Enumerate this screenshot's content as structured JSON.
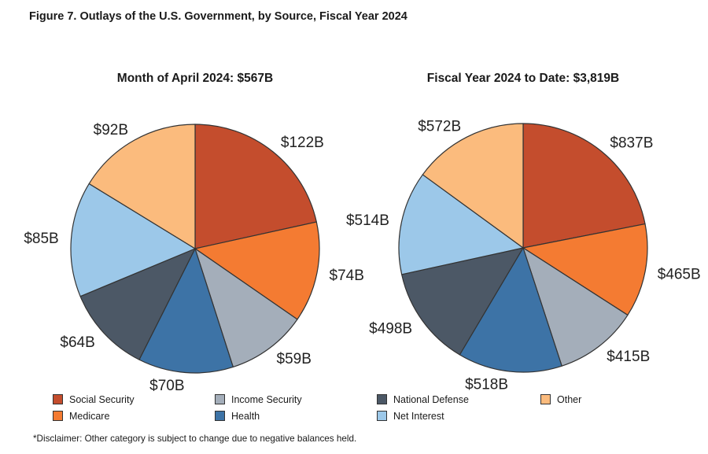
{
  "figure": {
    "title": "Figure 7. Outlays of the U.S. Government, by Source, Fiscal Year 2024",
    "disclaimer": "*Disclaimer: Other category is subject to change due to negative balances held."
  },
  "colors": {
    "Social Security": "#C44D2D",
    "Medicare": "#F47B32",
    "Income Security": "#A4AEBA",
    "Health": "#3D73A6",
    "National Defense": "#4C5866",
    "Net Interest": "#9CC8E9",
    "Other": "#FBBB7D",
    "slice_border": "#333333",
    "text": "#1A1A1A"
  },
  "legend": {
    "columns": [
      [
        "Social Security",
        "Medicare"
      ],
      [
        "Income Security",
        "Health"
      ],
      [
        "National Defense",
        "Net Interest"
      ],
      [
        "Other"
      ]
    ]
  },
  "chart_data": [
    {
      "type": "pie",
      "title": "Month of April 2024: $567B",
      "total_label": "$567B",
      "categories": [
        "Social Security",
        "Medicare",
        "Income Security",
        "Health",
        "National Defense",
        "Net Interest",
        "Other"
      ],
      "values": [
        122,
        74,
        59,
        70,
        64,
        85,
        92
      ],
      "labels": [
        "$122B",
        "$74B",
        "$59B",
        "$70B",
        "$64B",
        "$85B",
        "$92B"
      ],
      "start_angle": "12 o'clock",
      "direction": "clockwise",
      "legend_position": "bottom"
    },
    {
      "type": "pie",
      "title": "Fiscal Year 2024 to Date: $3,819B",
      "total_label": "$3,819B",
      "categories": [
        "Social Security",
        "Medicare",
        "Income Security",
        "Health",
        "National Defense",
        "Net Interest",
        "Other"
      ],
      "values": [
        837,
        465,
        415,
        518,
        498,
        514,
        572
      ],
      "labels": [
        "$837B",
        "$465B",
        "$415B",
        "$518B",
        "$498B",
        "$514B",
        "$572B"
      ],
      "start_angle": "12 o'clock",
      "direction": "clockwise",
      "legend_position": "bottom"
    }
  ]
}
